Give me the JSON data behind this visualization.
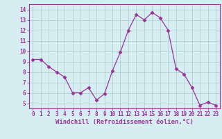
{
  "hours": [
    0,
    1,
    2,
    3,
    4,
    5,
    6,
    7,
    8,
    9,
    10,
    11,
    12,
    13,
    14,
    15,
    16,
    17,
    18,
    19,
    20,
    21,
    22,
    23
  ],
  "windchill": [
    9.2,
    9.2,
    8.5,
    8.0,
    7.5,
    6.0,
    6.0,
    6.5,
    5.3,
    5.9,
    8.1,
    9.9,
    12.0,
    13.5,
    13.0,
    13.7,
    13.2,
    12.0,
    8.3,
    7.8,
    6.5,
    4.8,
    5.1,
    4.8
  ],
  "line_color": "#993399",
  "marker": "D",
  "marker_size": 2.5,
  "bg_color": "#d6eef2",
  "grid_color": "#aacccc",
  "xlabel": "Windchill (Refroidissement éolien,°C)",
  "xlabel_color": "#993399",
  "xlabel_fontsize": 6.5,
  "ylabel_ticks": [
    5,
    6,
    7,
    8,
    9,
    10,
    11,
    12,
    13,
    14
  ],
  "ylim": [
    4.5,
    14.5
  ],
  "xlim": [
    -0.5,
    23.5
  ],
  "tick_color": "#993399",
  "tick_fontsize": 5.5,
  "spine_color": "#993399"
}
